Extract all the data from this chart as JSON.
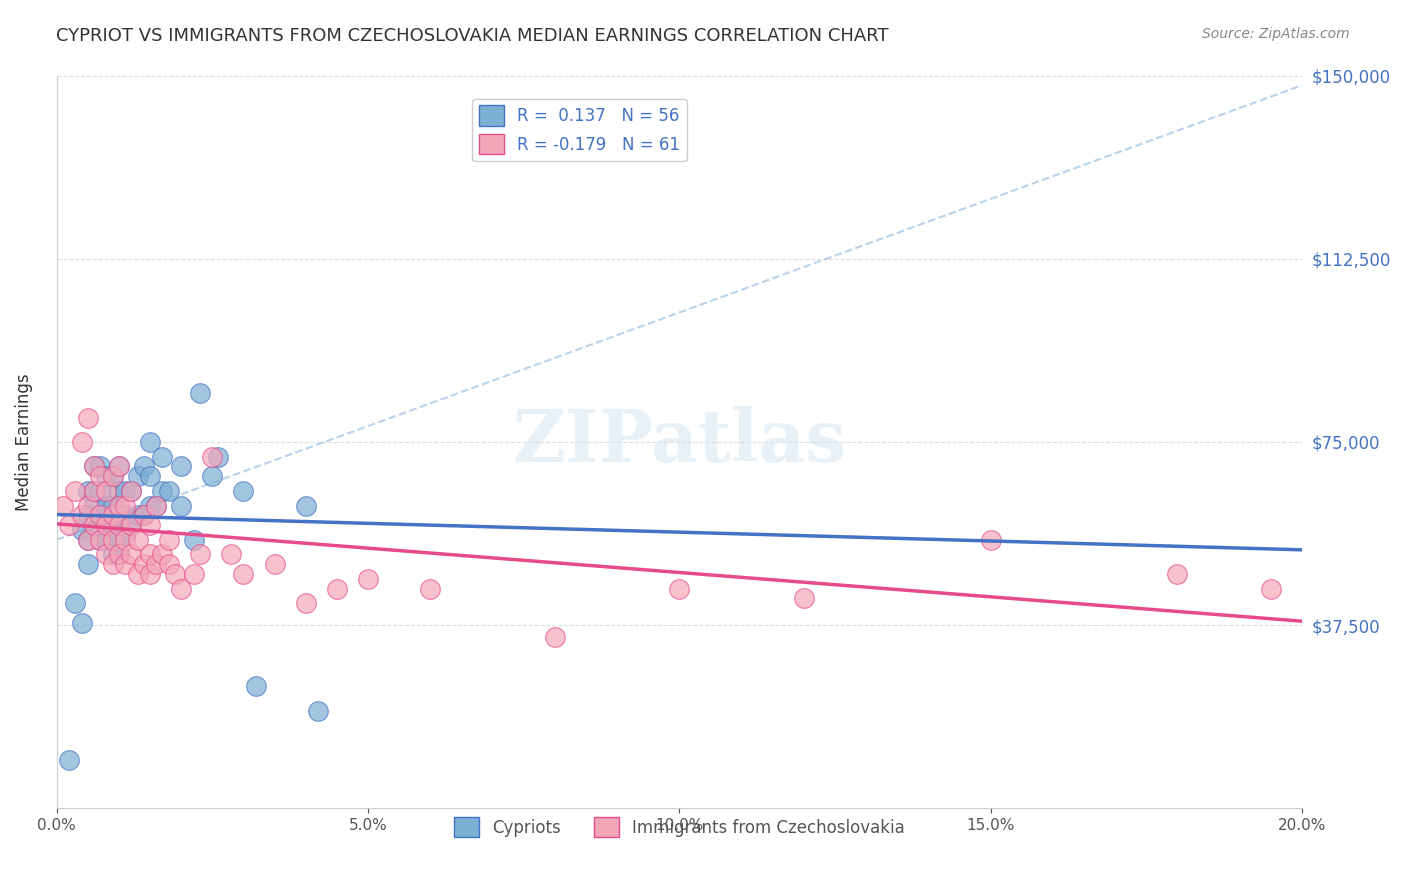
{
  "title": "CYPRIOT VS IMMIGRANTS FROM CZECHOSLOVAKIA MEDIAN EARNINGS CORRELATION CHART",
  "source": "Source: ZipAtlas.com",
  "xlabel": "",
  "ylabel": "Median Earnings",
  "x_min": 0.0,
  "x_max": 0.2,
  "y_min": 0,
  "y_max": 150000,
  "y_ticks": [
    37500,
    75000,
    112500,
    150000
  ],
  "y_tick_labels": [
    "$37,500",
    "$75,000",
    "$112,500",
    "$150,000"
  ],
  "x_tick_labels": [
    "0.0%",
    "5.0%",
    "10.0%",
    "15.0%",
    "20.0%"
  ],
  "x_ticks": [
    0.0,
    0.05,
    0.1,
    0.15,
    0.2
  ],
  "legend_r1": "R =  0.137",
  "legend_n1": "N = 56",
  "legend_r2": "R = -0.179",
  "legend_n2": "N = 61",
  "color_blue": "#7BAFD4",
  "color_pink": "#F4A7B9",
  "line_blue": "#4472C4",
  "line_pink": "#E84B8A",
  "line_dashed": "#A8C8E8",
  "watermark": "ZIPatlas",
  "background": "#FFFFFF",
  "grid_color": "#DDDDDD",
  "title_color": "#333333",
  "axis_label_color": "#333333",
  "tick_color_right": "#4472C4",
  "cypriot_x": [
    0.002,
    0.003,
    0.004,
    0.004,
    0.005,
    0.005,
    0.005,
    0.005,
    0.006,
    0.006,
    0.006,
    0.006,
    0.006,
    0.007,
    0.007,
    0.007,
    0.007,
    0.008,
    0.008,
    0.008,
    0.008,
    0.009,
    0.009,
    0.009,
    0.009,
    0.01,
    0.01,
    0.01,
    0.01,
    0.01,
    0.011,
    0.011,
    0.011,
    0.012,
    0.012,
    0.013,
    0.013,
    0.014,
    0.014,
    0.015,
    0.015,
    0.015,
    0.016,
    0.017,
    0.017,
    0.018,
    0.02,
    0.02,
    0.022,
    0.023,
    0.025,
    0.026,
    0.03,
    0.032,
    0.04,
    0.042
  ],
  "cypriot_y": [
    10000,
    42000,
    38000,
    57000,
    50000,
    55000,
    60000,
    65000,
    58000,
    60000,
    62000,
    65000,
    70000,
    55000,
    60000,
    65000,
    70000,
    55000,
    58000,
    62000,
    68000,
    52000,
    58000,
    62000,
    68000,
    52000,
    56000,
    60000,
    65000,
    70000,
    56000,
    60000,
    65000,
    58000,
    65000,
    60000,
    68000,
    60000,
    70000,
    62000,
    68000,
    75000,
    62000,
    65000,
    72000,
    65000,
    70000,
    62000,
    55000,
    85000,
    68000,
    72000,
    65000,
    25000,
    62000,
    20000
  ],
  "czech_x": [
    0.001,
    0.002,
    0.003,
    0.004,
    0.004,
    0.005,
    0.005,
    0.005,
    0.006,
    0.006,
    0.006,
    0.007,
    0.007,
    0.007,
    0.008,
    0.008,
    0.008,
    0.009,
    0.009,
    0.009,
    0.009,
    0.01,
    0.01,
    0.01,
    0.01,
    0.011,
    0.011,
    0.011,
    0.012,
    0.012,
    0.012,
    0.013,
    0.013,
    0.014,
    0.014,
    0.015,
    0.015,
    0.015,
    0.016,
    0.016,
    0.017,
    0.018,
    0.018,
    0.019,
    0.02,
    0.022,
    0.023,
    0.025,
    0.028,
    0.03,
    0.035,
    0.04,
    0.045,
    0.05,
    0.06,
    0.08,
    0.1,
    0.12,
    0.15,
    0.18,
    0.195
  ],
  "czech_y": [
    62000,
    58000,
    65000,
    60000,
    75000,
    55000,
    62000,
    80000,
    58000,
    65000,
    70000,
    55000,
    60000,
    68000,
    52000,
    58000,
    65000,
    50000,
    55000,
    60000,
    68000,
    52000,
    58000,
    62000,
    70000,
    50000,
    55000,
    62000,
    52000,
    58000,
    65000,
    48000,
    55000,
    50000,
    60000,
    48000,
    52000,
    58000,
    50000,
    62000,
    52000,
    50000,
    55000,
    48000,
    45000,
    48000,
    52000,
    72000,
    52000,
    48000,
    50000,
    42000,
    45000,
    47000,
    45000,
    35000,
    45000,
    43000,
    55000,
    48000,
    45000
  ]
}
